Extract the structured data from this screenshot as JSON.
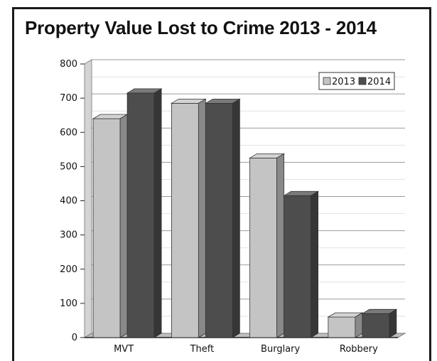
{
  "chart_data": {
    "type": "bar",
    "title": "Property Value Lost to Crime 2013 - 2014",
    "categories": [
      "MVT",
      "Theft",
      "Burglary",
      "Robbery"
    ],
    "series": [
      {
        "name": "2013",
        "values": [
          640,
          685,
          525,
          60
        ],
        "color": "#c4c4c4"
      },
      {
        "name": "2014",
        "values": [
          715,
          685,
          415,
          70
        ],
        "color": "#4d4d4d"
      }
    ],
    "ylim": [
      0,
      800
    ],
    "yticks": [
      0,
      100,
      200,
      300,
      400,
      500,
      600,
      700,
      800
    ],
    "grid": true,
    "legend_position": "top-right",
    "bar_style": "3d"
  }
}
